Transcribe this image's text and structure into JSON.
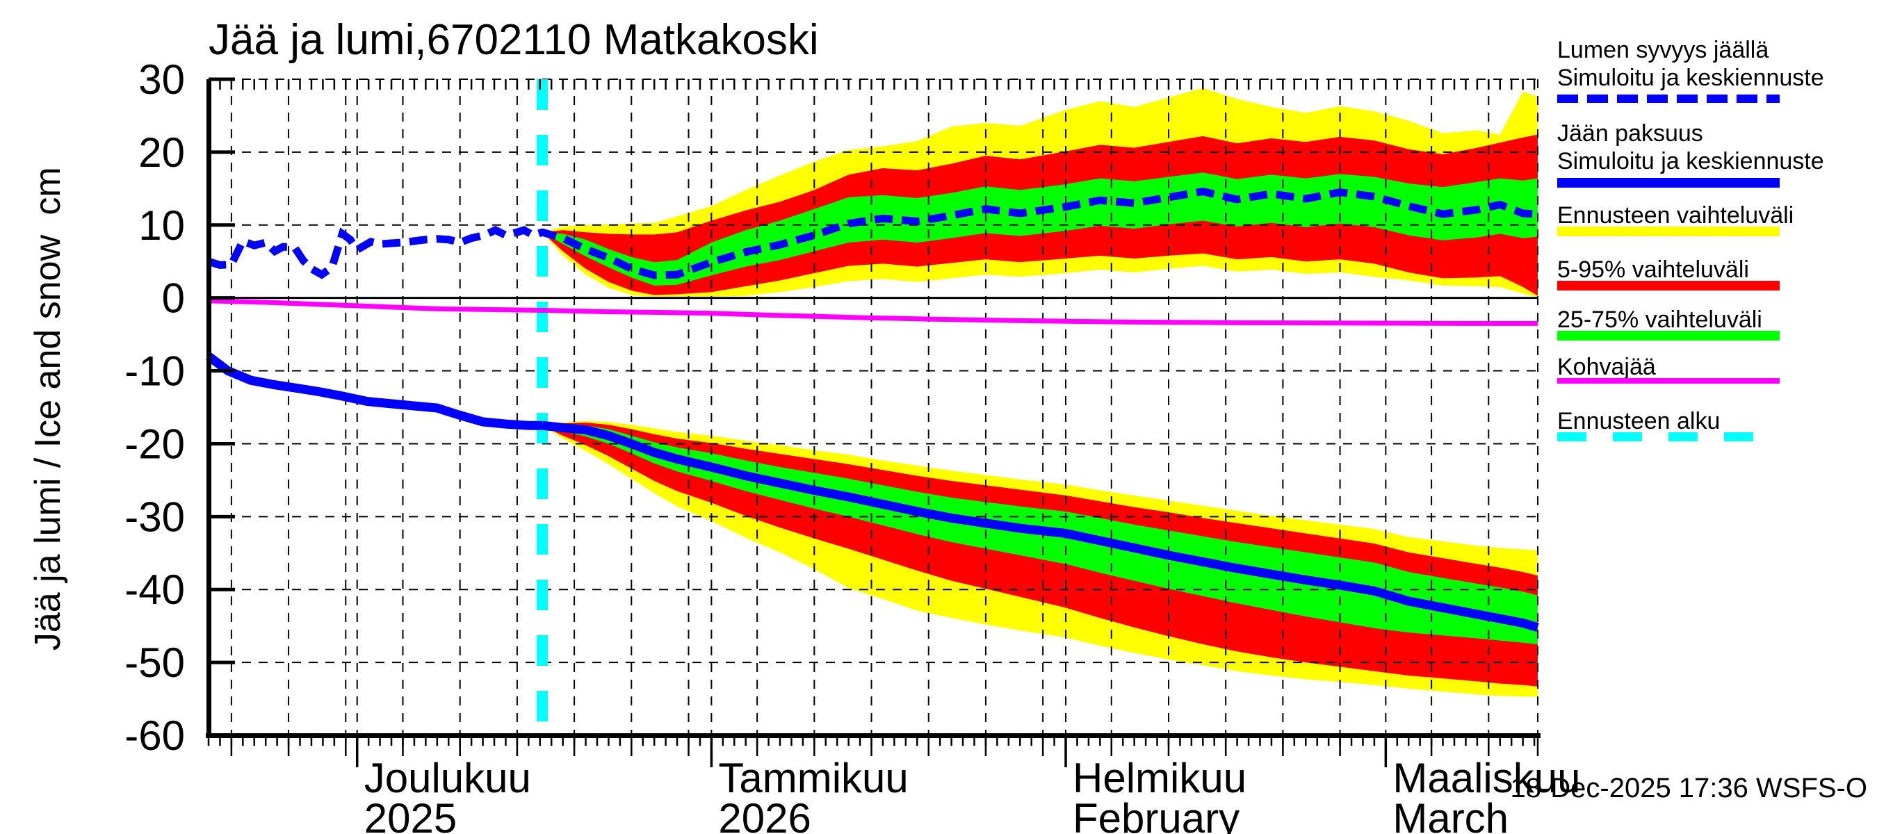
{
  "footer": {
    "timestamp": "18-Dec-2025 17:36 WSFS-O"
  },
  "legend": {
    "items": [
      {
        "lines": [
          "Lumen syvyys jäällä",
          "Simuloitu ja keskiennuste"
        ],
        "color": "#0000ff",
        "style": "dashed",
        "thickness": 12,
        "dash": 30,
        "gap": 13
      },
      {
        "lines": [
          "Jään paksuus",
          "Simuloitu ja keskiennuste"
        ],
        "color": "#0000ff",
        "style": "solid",
        "thickness": 14,
        "dash": 0,
        "gap": 0
      },
      {
        "lines": [
          "Ennusteen vaihteluväli"
        ],
        "color": "#ffff00",
        "style": "solid",
        "thickness": 14,
        "dash": 0,
        "gap": 0
      },
      {
        "lines": [
          "5-95% vaihteluväli"
        ],
        "color": "#ff0000",
        "style": "solid",
        "thickness": 14,
        "dash": 0,
        "gap": 0
      },
      {
        "lines": [
          "25-75% vaihteluväli"
        ],
        "color": "#00ff00",
        "style": "solid",
        "thickness": 14,
        "dash": 0,
        "gap": 0
      },
      {
        "lines": [
          "Kohvajää"
        ],
        "color": "#ff00ff",
        "style": "solid",
        "thickness": 8,
        "dash": 0,
        "gap": 0
      },
      {
        "lines": [
          "Ennusteen alku"
        ],
        "color": "#00ffff",
        "style": "dashed",
        "thickness": 13,
        "dash": 42,
        "gap": 38
      }
    ]
  },
  "chart_data": {
    "type": "line",
    "subtype": "hydrological ice and snow forecast with uncertainty bands",
    "title": "Jää ja lumi,6702110 Matkakoski",
    "y_axis": {
      "label": "Jää ja lumi / Ice and snow",
      "unit": "cm",
      "ticks": [
        30,
        20,
        10,
        0,
        -10,
        -20,
        -30,
        -40,
        -50,
        -60
      ],
      "gridlines": [
        30,
        20,
        10,
        -10,
        -20,
        -30,
        -40,
        -50
      ]
    },
    "y_domain": [
      -60,
      30
    ],
    "x_domain": [
      0,
      116.3
    ],
    "x_axis_note": "day index, 0 = left edge (mid-Nov 2025), month starts labelled",
    "months": [
      {
        "label": "Joulukuu",
        "sublabel": "2025",
        "day": 13
      },
      {
        "label": "Tammikuu",
        "sublabel": "2026",
        "day": 44
      },
      {
        "label": "Helmikuu",
        "sublabel": "February",
        "day": 75
      },
      {
        "label": "Maaliskuu",
        "sublabel": "March",
        "day": 103
      }
    ],
    "x_gridline_days": [
      2,
      7,
      12,
      13,
      17,
      22,
      27,
      32,
      37,
      42,
      44,
      48,
      53,
      58,
      63,
      68,
      73,
      75,
      79,
      84,
      89,
      94,
      99,
      103,
      107,
      112,
      116.3
    ],
    "forecast_start_day": 29.2,
    "grid": true,
    "legend_position": "right",
    "colors": {
      "median_line": "#0000ff",
      "forecast_range": "#ffff00",
      "range_5_95": "#ff0000",
      "range_25_75": "#00ff00",
      "kohvajaa": "#ff00ff",
      "forecast_start": "#00ffff",
      "grid": "#000000"
    },
    "series": {
      "snow_history": {
        "name": "Lumen syvyys jäällä (simuloitu)",
        "x": [
          0,
          1,
          2,
          3,
          4,
          5,
          5.8,
          6.5,
          7.5,
          8.3,
          9,
          9.9,
          10.8,
          11.7,
          12.4,
          13,
          14.2,
          15,
          16,
          17,
          18,
          19,
          20,
          21,
          22,
          23,
          24.1,
          25.1,
          26,
          27,
          27.6,
          28.4,
          29.2
        ],
        "y": [
          5.0,
          4.5,
          4.6,
          7.8,
          7.2,
          7.6,
          6.4,
          7.0,
          7.0,
          5.1,
          4.0,
          3.2,
          4.2,
          8.8,
          8.0,
          6.6,
          7.7,
          7.4,
          7.5,
          7.6,
          7.8,
          8.0,
          8.1,
          8.0,
          7.6,
          8.2,
          8.6,
          9.3,
          8.6,
          9.0,
          9.3,
          8.6,
          9.0
        ]
      },
      "ice_history": {
        "name": "Jään paksuus (simuloitu)",
        "x": [
          0,
          1.7,
          3.7,
          5.7,
          7.8,
          9.8,
          11.8,
          13.9,
          15.9,
          17.9,
          20,
          22,
          24,
          26,
          28,
          29.2
        ],
        "y": [
          -8.0,
          -10.0,
          -11.3,
          -11.9,
          -12.4,
          -12.9,
          -13.5,
          -14.2,
          -14.5,
          -14.8,
          -15.1,
          -16.1,
          -17.0,
          -17.3,
          -17.5,
          -17.5
        ]
      },
      "kohvajaa": {
        "name": "Kohvajää",
        "x": [
          0,
          5,
          10,
          15,
          20,
          25,
          29.2,
          35,
          40,
          44,
          50,
          57,
          63,
          70,
          80,
          90,
          100,
          110,
          116.3
        ],
        "y": [
          -0.4,
          -0.6,
          -0.9,
          -1.2,
          -1.5,
          -1.6,
          -1.7,
          -1.9,
          -2.0,
          -2.1,
          -2.4,
          -2.7,
          -2.9,
          -3.1,
          -3.3,
          -3.4,
          -3.45,
          -3.5,
          -3.5
        ]
      },
      "forecast": {
        "days": [
          29.2,
          31,
          33,
          35,
          37,
          39,
          41,
          44,
          47,
          50,
          53,
          56,
          59,
          62,
          65,
          68,
          71,
          75,
          78,
          81,
          84,
          87,
          90,
          93,
          96,
          99,
          102,
          105,
          108,
          111,
          113,
          115,
          116.3
        ],
        "snow": {
          "median": [
            9.0,
            8.2,
            6.7,
            5.5,
            4.0,
            3.1,
            3.2,
            4.9,
            6.3,
            7.3,
            8.6,
            10.2,
            10.9,
            10.5,
            11.3,
            12.2,
            11.6,
            12.5,
            13.4,
            13.0,
            13.8,
            14.6,
            13.5,
            14.3,
            13.6,
            14.5,
            13.9,
            12.6,
            11.5,
            12.1,
            12.8,
            11.6,
            11.5
          ],
          "green_top": [
            9.0,
            8.8,
            8.0,
            6.7,
            5.6,
            4.9,
            5.2,
            7.6,
            9.3,
            10.6,
            12.2,
            13.8,
            14.1,
            13.7,
            14.4,
            15.3,
            14.8,
            15.6,
            16.4,
            16.0,
            16.6,
            17.2,
            16.3,
            16.9,
            16.4,
            17.0,
            16.6,
            15.7,
            15.2,
            15.9,
            16.4,
            16.1,
            16.4
          ],
          "green_bot": [
            9.0,
            7.4,
            5.7,
            4.2,
            2.8,
            1.7,
            1.8,
            3.1,
            4.3,
            5.2,
            6.4,
            7.6,
            8.0,
            7.6,
            8.2,
            8.9,
            8.5,
            9.2,
            9.9,
            9.5,
            10.1,
            10.6,
            9.8,
            10.3,
            9.7,
            10.2,
            9.7,
            8.6,
            7.9,
            8.3,
            8.8,
            8.2,
            8.4
          ],
          "red_top": [
            9.0,
            9.3,
            9.0,
            8.8,
            8.7,
            8.7,
            9.0,
            10.6,
            12.0,
            13.2,
            14.8,
            16.9,
            17.8,
            17.5,
            18.4,
            19.5,
            19.0,
            20.1,
            21.0,
            20.6,
            21.4,
            22.2,
            21.2,
            21.9,
            21.4,
            22.1,
            21.6,
            20.4,
            19.7,
            20.6,
            21.3,
            22.0,
            22.4
          ],
          "red_bot": [
            9.0,
            6.4,
            4.0,
            2.2,
            1.0,
            0.4,
            0.5,
            0.8,
            1.6,
            2.4,
            3.4,
            4.4,
            4.7,
            4.3,
            4.8,
            5.3,
            4.9,
            5.4,
            5.8,
            5.4,
            5.8,
            6.1,
            5.3,
            5.6,
            5.0,
            5.3,
            4.7,
            3.5,
            2.7,
            2.8,
            3.0,
            1.5,
            0.3
          ],
          "yellow_top": [
            9.0,
            9.8,
            10.0,
            10.1,
            10.2,
            10.3,
            11.2,
            12.6,
            14.8,
            16.8,
            18.7,
            20.3,
            20.8,
            21.5,
            23.5,
            24.0,
            23.6,
            25.8,
            27.0,
            26.2,
            27.5,
            28.8,
            27.3,
            26.2,
            25.4,
            26.3,
            25.6,
            24.3,
            22.6,
            23.0,
            22.4,
            28.3,
            27.6
          ],
          "yellow_bot": [
            9.0,
            5.8,
            3.2,
            1.4,
            0.4,
            0.1,
            0.1,
            0.1,
            0.3,
            0.8,
            1.5,
            2.3,
            2.6,
            2.2,
            2.7,
            3.2,
            2.9,
            3.4,
            3.9,
            3.5,
            4.0,
            4.4,
            3.6,
            3.9,
            3.3,
            3.5,
            2.9,
            2.4,
            1.7,
            1.6,
            1.5,
            0.6,
            0.1
          ]
        },
        "ice": {
          "median": [
            -17.5,
            -17.8,
            -18.1,
            -18.9,
            -20.0,
            -21.2,
            -22.1,
            -23.2,
            -24.4,
            -25.4,
            -26.4,
            -27.3,
            -28.3,
            -29.3,
            -30.2,
            -30.9,
            -31.6,
            -32.3,
            -33.3,
            -34.3,
            -35.3,
            -36.2,
            -37.1,
            -37.9,
            -38.7,
            -39.4,
            -40.2,
            -41.6,
            -42.5,
            -43.4,
            -44.0,
            -44.6,
            -45.2
          ],
          "green_top": [
            -17.5,
            -17.4,
            -17.5,
            -18.0,
            -18.9,
            -19.8,
            -20.5,
            -21.3,
            -22.3,
            -23.2,
            -24.0,
            -24.8,
            -25.7,
            -26.6,
            -27.4,
            -28.0,
            -28.6,
            -29.3,
            -30.2,
            -31.1,
            -31.9,
            -32.7,
            -33.5,
            -34.2,
            -34.9,
            -35.6,
            -36.3,
            -37.6,
            -38.4,
            -39.2,
            -39.7,
            -40.3,
            -40.8
          ],
          "green_bot": [
            -17.5,
            -18.3,
            -19.0,
            -20.0,
            -21.3,
            -22.7,
            -23.8,
            -25.1,
            -26.5,
            -27.7,
            -28.9,
            -30.0,
            -31.2,
            -32.4,
            -33.5,
            -34.4,
            -35.3,
            -36.5,
            -37.7,
            -38.8,
            -39.9,
            -40.9,
            -41.9,
            -42.8,
            -43.7,
            -44.5,
            -45.3,
            -45.9,
            -46.3,
            -46.7,
            -47.0,
            -47.3,
            -47.5
          ],
          "red_top": [
            -17.5,
            -17.2,
            -17.1,
            -17.4,
            -18.0,
            -18.7,
            -19.3,
            -19.9,
            -20.7,
            -21.4,
            -22.1,
            -22.8,
            -23.6,
            -24.4,
            -25.1,
            -25.7,
            -26.3,
            -27.1,
            -27.9,
            -28.7,
            -29.4,
            -30.2,
            -30.9,
            -31.6,
            -32.3,
            -33.0,
            -33.7,
            -34.9,
            -35.7,
            -36.5,
            -37.0,
            -37.6,
            -38.1
          ],
          "red_bot": [
            -17.5,
            -18.9,
            -20.2,
            -21.7,
            -23.4,
            -25.1,
            -26.5,
            -28.1,
            -29.9,
            -31.5,
            -33.0,
            -34.4,
            -35.9,
            -37.4,
            -38.8,
            -39.9,
            -41.0,
            -42.5,
            -43.9,
            -45.2,
            -46.4,
            -47.5,
            -48.5,
            -49.3,
            -50.0,
            -50.6,
            -51.2,
            -51.8,
            -52.2,
            -52.6,
            -52.9,
            -53.1,
            -53.3
          ],
          "yellow_top": [
            -17.5,
            -17.1,
            -16.9,
            -17.0,
            -17.4,
            -17.9,
            -18.4,
            -18.9,
            -19.6,
            -20.2,
            -20.9,
            -21.5,
            -22.3,
            -23.0,
            -23.7,
            -24.3,
            -24.9,
            -25.6,
            -26.4,
            -27.1,
            -27.8,
            -28.5,
            -29.2,
            -29.9,
            -30.5,
            -31.1,
            -31.7,
            -32.8,
            -33.4,
            -34.0,
            -34.3,
            -34.5,
            -34.6
          ],
          "yellow_bot": [
            -17.5,
            -19.3,
            -21.0,
            -22.8,
            -24.8,
            -26.8,
            -28.6,
            -30.6,
            -32.9,
            -34.9,
            -37.2,
            -39.8,
            -41.3,
            -42.9,
            -43.9,
            -44.8,
            -45.6,
            -46.6,
            -47.7,
            -48.7,
            -49.6,
            -50.4,
            -51.2,
            -51.8,
            -52.3,
            -52.7,
            -53.1,
            -53.6,
            -54.0,
            -54.4,
            -54.6,
            -54.7,
            -54.7
          ]
        }
      }
    }
  }
}
